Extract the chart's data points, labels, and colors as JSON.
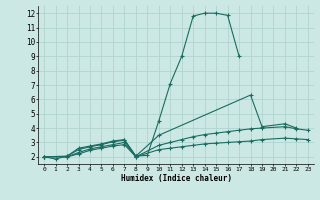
{
  "xlabel": "Humidex (Indice chaleur)",
  "xlim": [
    -0.5,
    23.5
  ],
  "ylim": [
    1.5,
    12.5
  ],
  "xticks": [
    0,
    1,
    2,
    3,
    4,
    5,
    6,
    7,
    8,
    9,
    10,
    11,
    12,
    13,
    14,
    15,
    16,
    17,
    18,
    19,
    20,
    21,
    22,
    23
  ],
  "yticks": [
    2,
    3,
    4,
    5,
    6,
    7,
    8,
    9,
    10,
    11,
    12
  ],
  "bg_color": "#cce8e4",
  "grid_color": "#b0d4cf",
  "line_color": "#1a6b60",
  "lines": [
    {
      "x": [
        0,
        1,
        2,
        3,
        4,
        5,
        6,
        7,
        8,
        9,
        10,
        11,
        12,
        13,
        14,
        15,
        16,
        17
      ],
      "y": [
        2.0,
        1.85,
        2.05,
        2.6,
        2.75,
        2.9,
        3.1,
        3.2,
        2.05,
        2.1,
        4.5,
        7.1,
        9.0,
        11.8,
        12.0,
        12.0,
        11.85,
        9.0
      ]
    },
    {
      "x": [
        0,
        2,
        3,
        4,
        5,
        6,
        7,
        8,
        10,
        18,
        19,
        21,
        22
      ],
      "y": [
        2.0,
        2.05,
        2.5,
        2.7,
        2.85,
        3.05,
        3.15,
        2.05,
        3.5,
        6.3,
        4.1,
        4.3,
        4.0
      ]
    },
    {
      "x": [
        0,
        2,
        3,
        4,
        5,
        6,
        7,
        8,
        10,
        11,
        12,
        13,
        14,
        15,
        16,
        17,
        18,
        19,
        21,
        22,
        23
      ],
      "y": [
        2.0,
        2.0,
        2.3,
        2.55,
        2.7,
        2.85,
        3.0,
        2.0,
        2.8,
        3.0,
        3.2,
        3.4,
        3.55,
        3.65,
        3.75,
        3.85,
        3.95,
        4.0,
        4.1,
        3.95,
        3.85
      ]
    },
    {
      "x": [
        0,
        2,
        3,
        4,
        5,
        6,
        7,
        8,
        10,
        11,
        12,
        13,
        14,
        15,
        16,
        17,
        18,
        19,
        21,
        22,
        23
      ],
      "y": [
        2.0,
        2.0,
        2.2,
        2.45,
        2.6,
        2.75,
        2.85,
        2.0,
        2.5,
        2.6,
        2.7,
        2.8,
        2.9,
        2.95,
        3.0,
        3.05,
        3.1,
        3.2,
        3.3,
        3.25,
        3.2
      ]
    }
  ]
}
